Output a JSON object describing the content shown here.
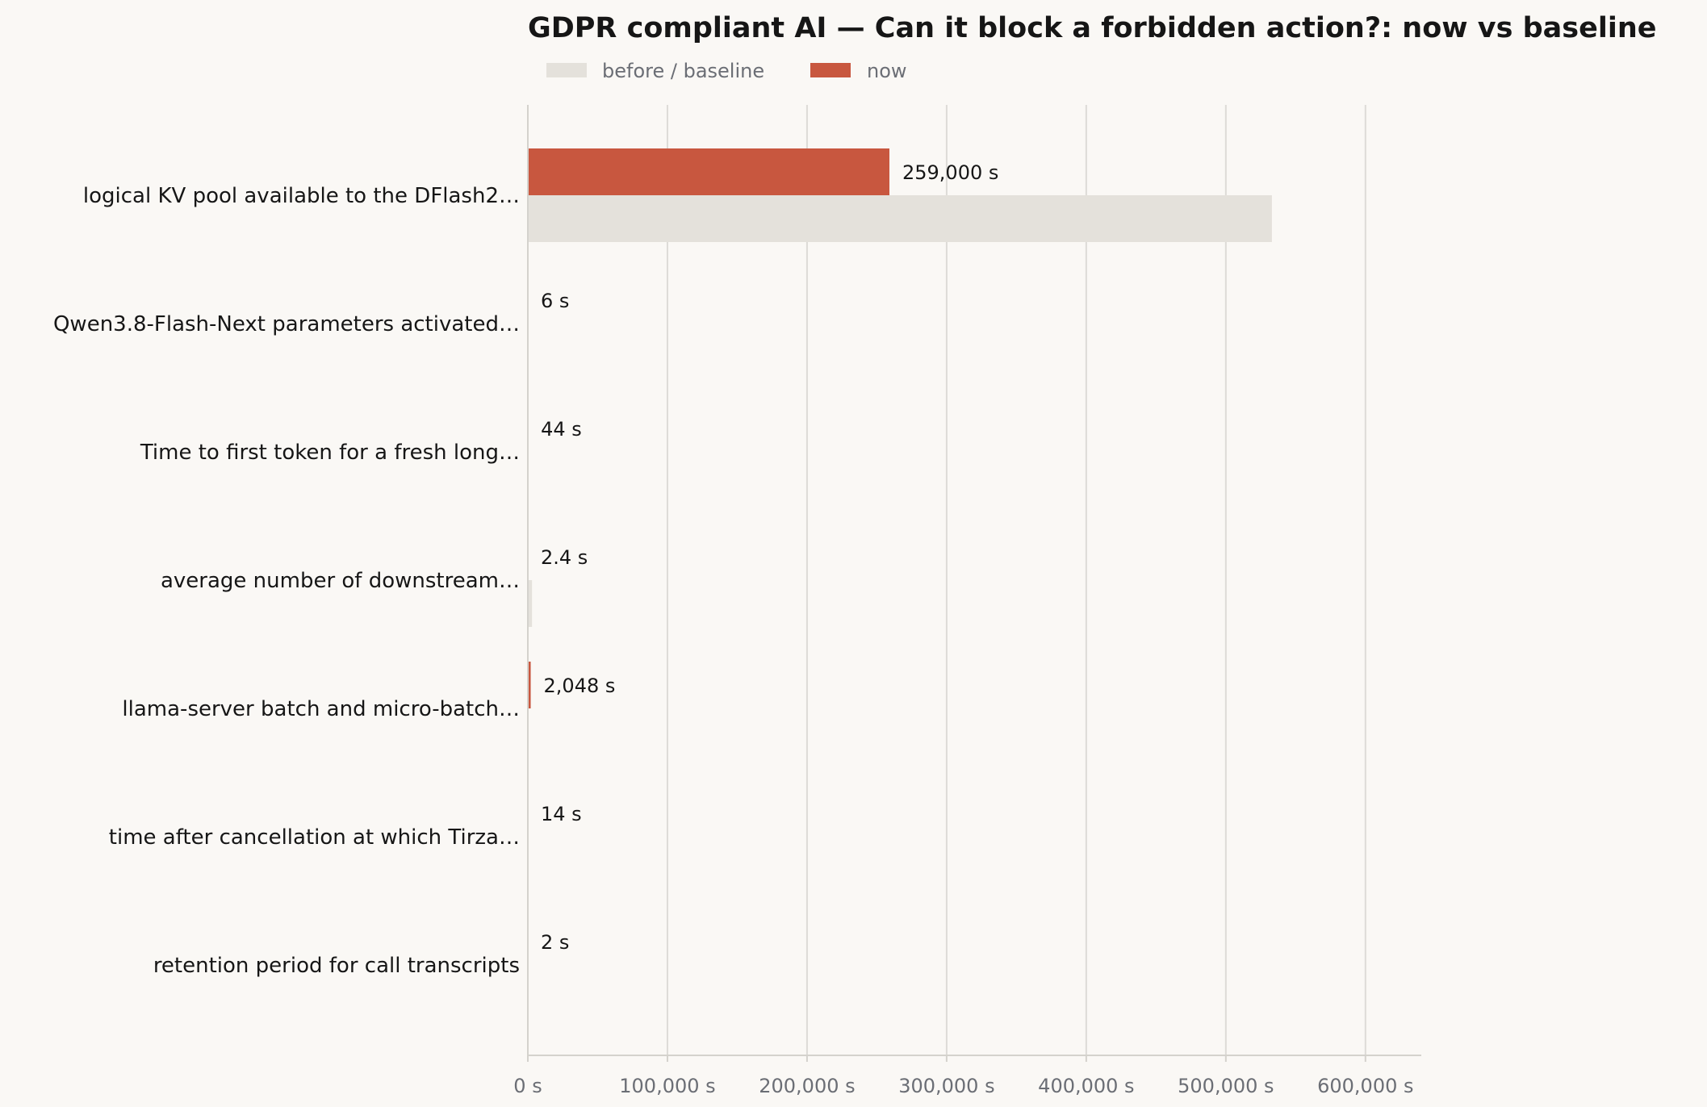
{
  "chart_data": {
    "type": "bar",
    "orientation": "horizontal",
    "title": "GDPR compliant AI — Can it block a forbidden action?: now vs baseline",
    "xlabel": "",
    "ylabel": "",
    "unit": "s",
    "xlim": [
      0,
      640000
    ],
    "xticks": [
      0,
      100000,
      200000,
      300000,
      400000,
      500000,
      600000
    ],
    "xtick_labels": [
      "0 s",
      "100,000 s",
      "200,000 s",
      "300,000 s",
      "400,000 s",
      "500,000 s",
      "600,000 s"
    ],
    "grid": "vertical",
    "legend_position": "top-left",
    "categories": [
      "logical KV pool available to the DFlash2…",
      "Qwen3.8-Flash-Next parameters activated…",
      "Time to first token for a fresh long…",
      "average number of downstream…",
      "llama-server batch and micro-batch…",
      "time after cancellation at which Tirza…",
      "retention period for call transcripts"
    ],
    "series": [
      {
        "name": "now",
        "color": "#c8573f",
        "values": [
          259000,
          6,
          44,
          2.4,
          2048,
          14,
          2
        ],
        "labels": [
          "259,000 s",
          "6 s",
          "44 s",
          "2.4 s",
          "2,048 s",
          "14 s",
          "2 s"
        ]
      },
      {
        "name": "before / baseline",
        "color": "#e4e1db",
        "values": [
          533000,
          0,
          0,
          3000,
          0,
          0,
          0
        ]
      }
    ],
    "legend": [
      "before / baseline",
      "now"
    ]
  }
}
